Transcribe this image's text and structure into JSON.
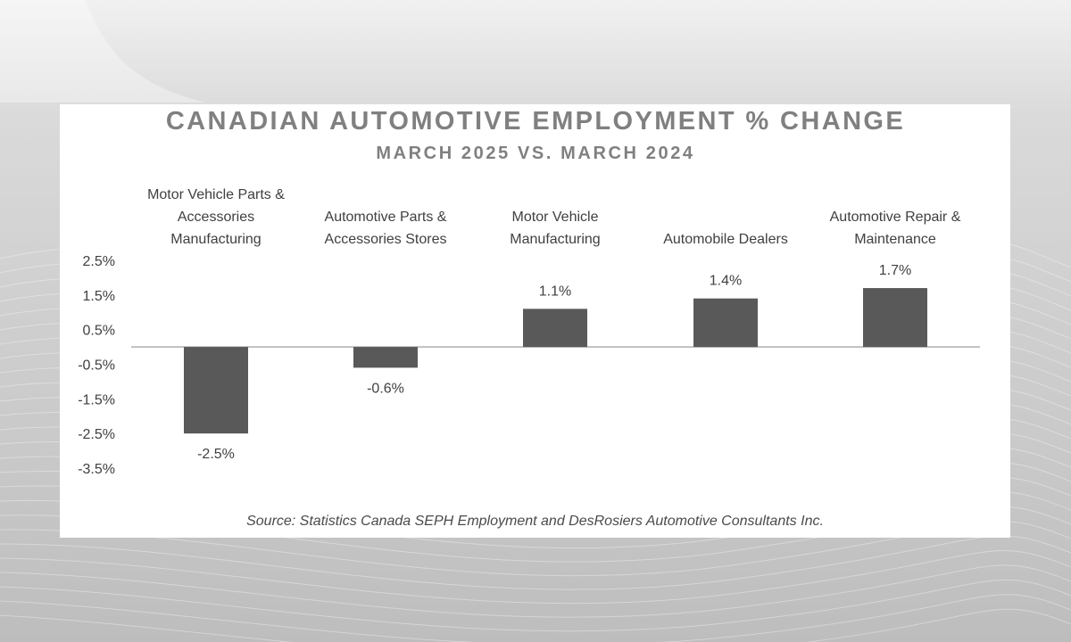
{
  "chart_title": "CANADIAN AUTOMOTIVE EMPLOYMENT % CHANGE",
  "chart_subtitle": "MARCH 2025 VS. MARCH 2024",
  "source": "Source: Statistics Canada SEPH Employment and DesRosiers Automotive Consultants Inc.",
  "colors": {
    "bar": "#595959",
    "axis": "#bfbfbf",
    "text": "#404040",
    "title": "#808080"
  },
  "chart_data": {
    "type": "bar",
    "categories": [
      "Motor Vehicle Parts & Accessories Manufacturing",
      "Automotive Parts & Accessories Stores",
      "Motor Vehicle Manufacturing",
      "Automobile Dealers",
      "Automotive Repair & Maintenance"
    ],
    "category_label_lines": [
      [
        "Motor Vehicle Parts &",
        "Accessories",
        "Manufacturing"
      ],
      [
        "Automotive Parts &",
        "Accessories Stores"
      ],
      [
        "Motor Vehicle",
        "Manufacturing"
      ],
      [
        "Automobile Dealers"
      ],
      [
        "Automotive Repair &",
        "Maintenance"
      ]
    ],
    "values": [
      -2.5,
      -0.6,
      1.1,
      1.4,
      1.7
    ],
    "data_labels": [
      "-2.5%",
      "-0.6%",
      "1.1%",
      "1.4%",
      "1.7%"
    ],
    "y_ticks": [
      2.5,
      1.5,
      0.5,
      -0.5,
      -1.5,
      -2.5,
      -3.5
    ],
    "y_tick_labels": [
      "2.5%",
      "1.5%",
      "0.5%",
      "-0.5%",
      "-1.5%",
      "-2.5%",
      "-3.5%"
    ],
    "ylim": [
      -3.5,
      2.5
    ],
    "title": "CANADIAN AUTOMOTIVE EMPLOYMENT % CHANGE",
    "subtitle": "MARCH 2025 VS. MARCH 2024",
    "grid": false,
    "legend": "none"
  }
}
